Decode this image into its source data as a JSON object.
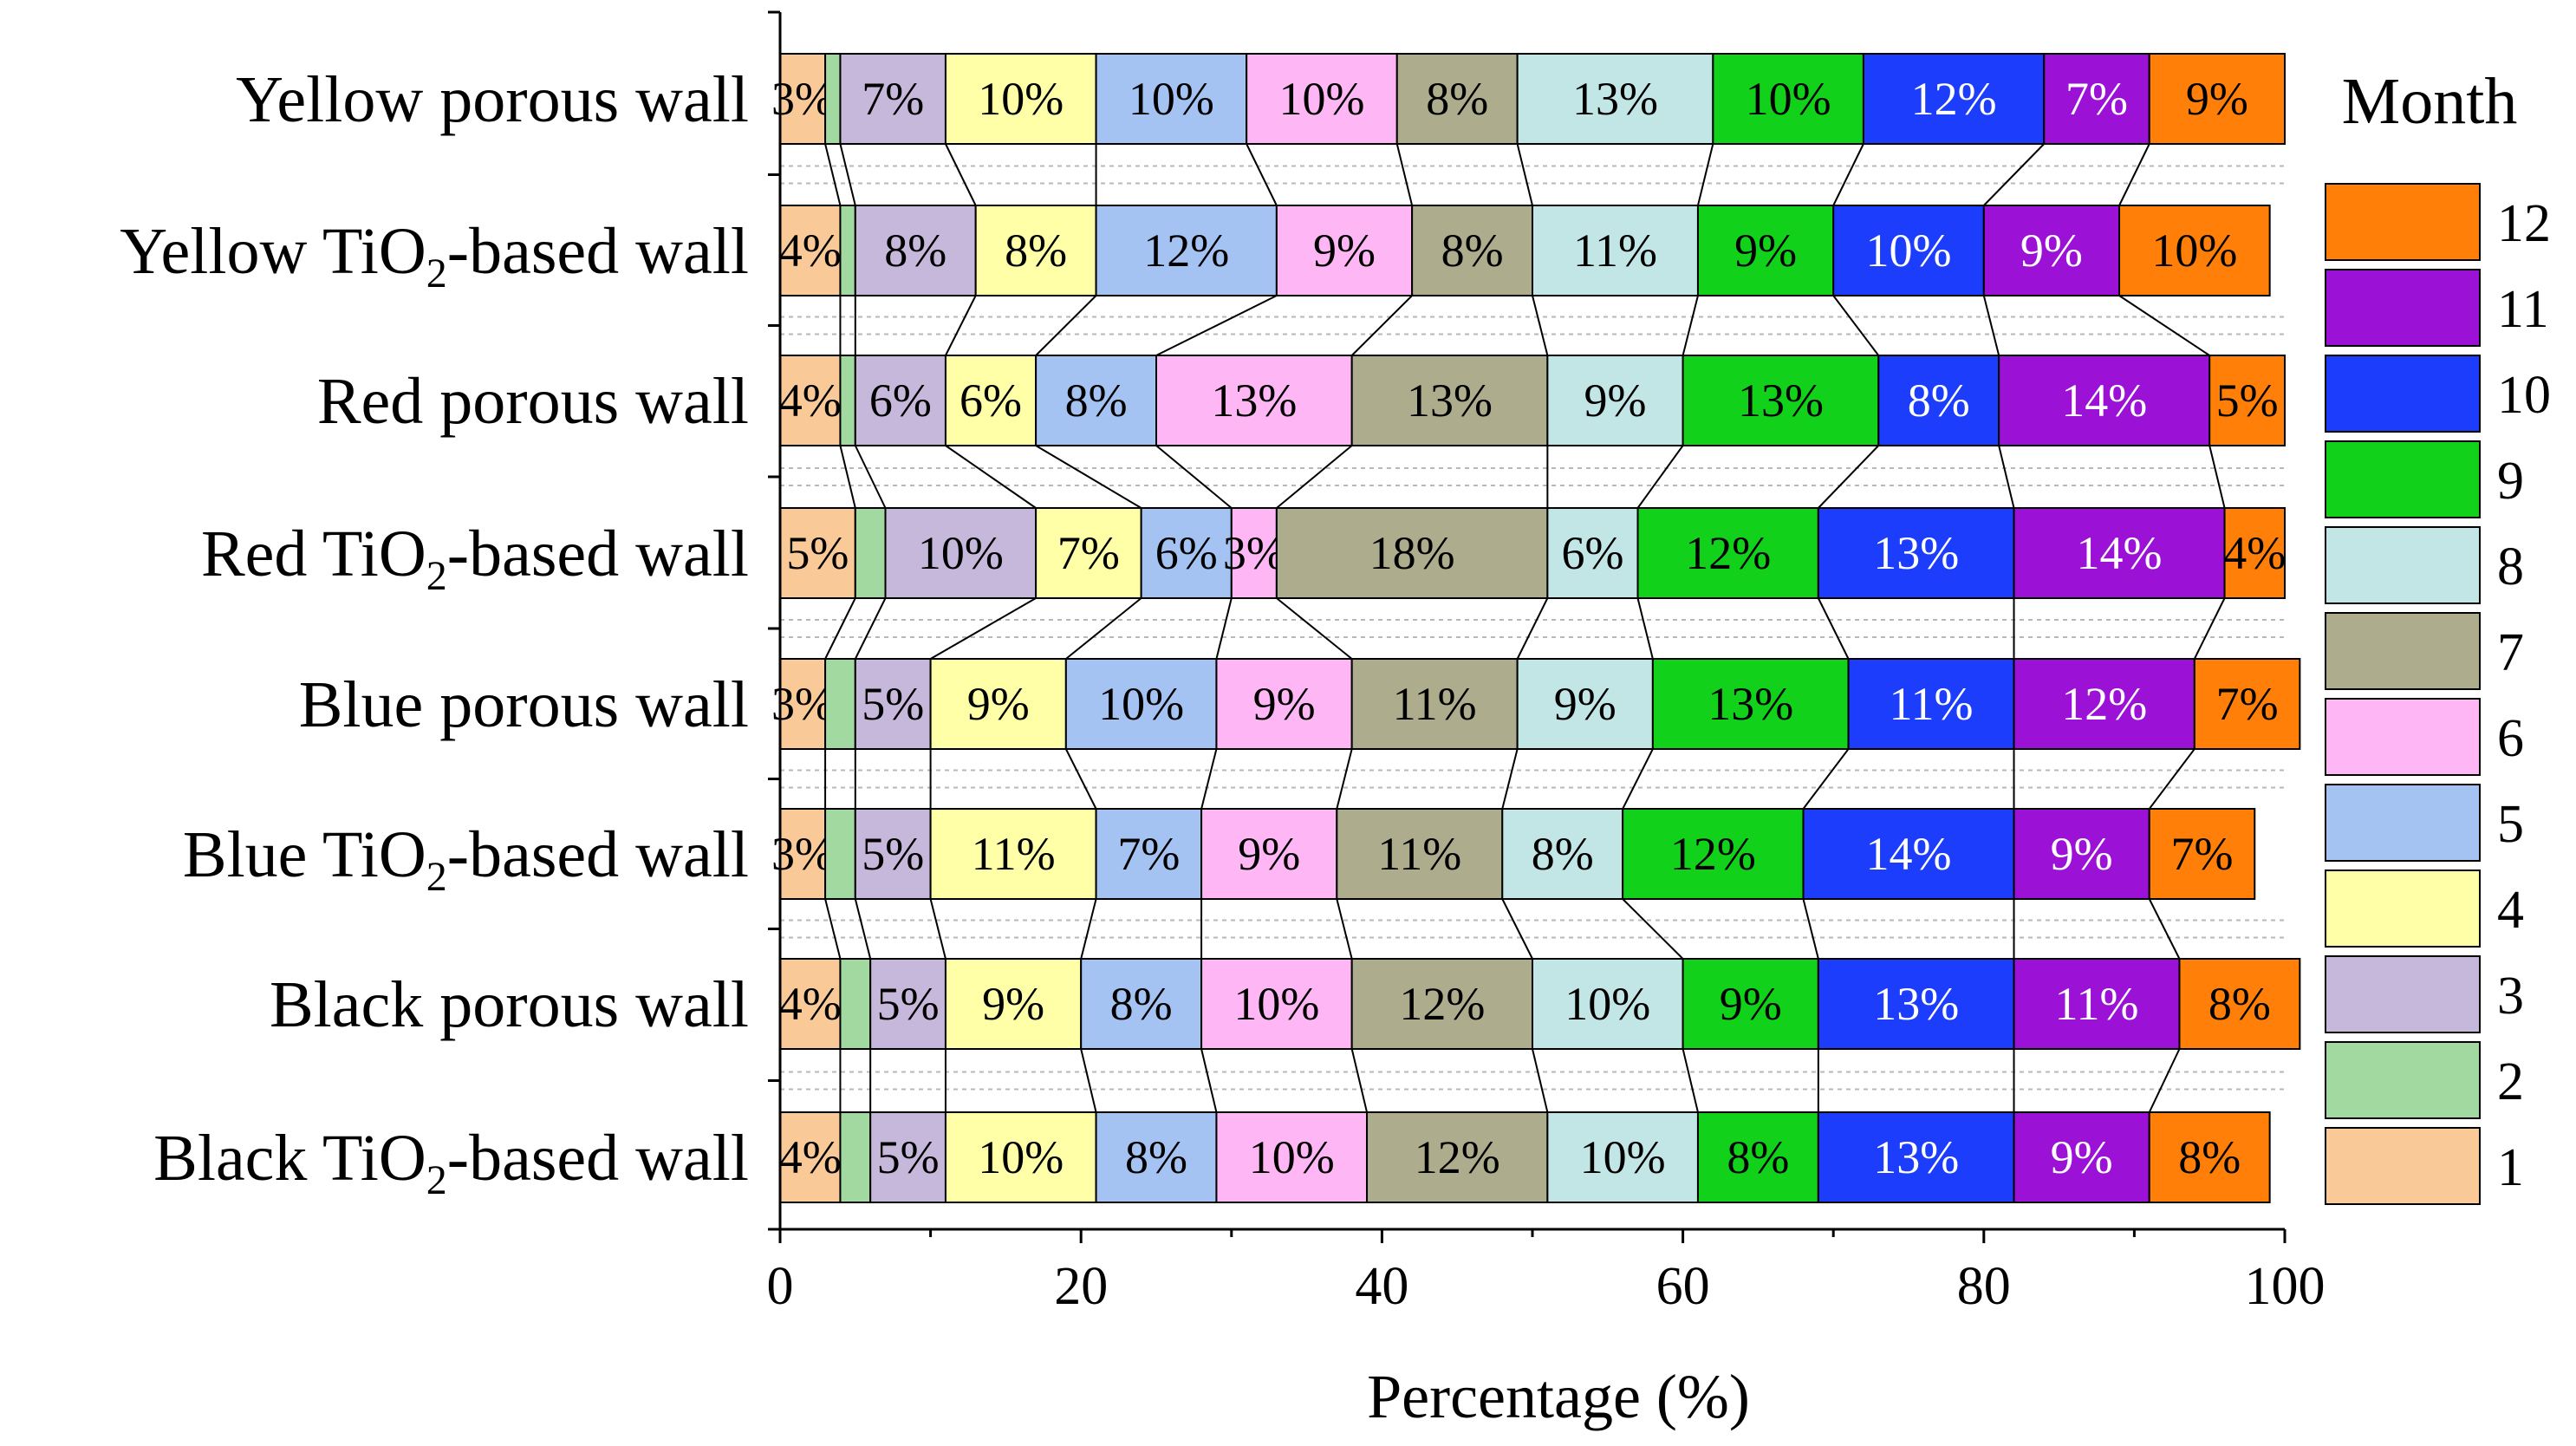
{
  "chart_data": {
    "type": "bar",
    "orientation": "horizontal",
    "stacked": true,
    "percent": true,
    "xlabel": "Percentage (%)",
    "xlim": [
      0,
      100
    ],
    "xticks": [
      0,
      20,
      40,
      60,
      80,
      100
    ],
    "legend_title": "Month",
    "legend_placement": "right",
    "categories": [
      {
        "pre": "Yellow porous wall",
        "sub": "",
        "post": ""
      },
      {
        "pre": "Yellow TiO",
        "sub": "2",
        "post": "-based wall"
      },
      {
        "pre": "Red porous wall",
        "sub": "",
        "post": ""
      },
      {
        "pre": "Red TiO",
        "sub": "2",
        "post": "-based wall"
      },
      {
        "pre": "Blue porous wall",
        "sub": "",
        "post": ""
      },
      {
        "pre": "Blue TiO",
        "sub": "2",
        "post": "-based wall"
      },
      {
        "pre": "Black porous wall",
        "sub": "",
        "post": ""
      },
      {
        "pre": "Black TiO",
        "sub": "2",
        "post": "-based wall"
      }
    ],
    "series": [
      {
        "name": "1",
        "color": "#f9c997",
        "text_color": "#000000",
        "values": [
          3,
          4,
          4,
          5,
          3,
          3,
          4,
          4
        ],
        "labels": [
          "3%",
          "4%",
          "4%",
          "5%",
          "3%",
          "3%",
          "4%",
          "4%"
        ]
      },
      {
        "name": "2",
        "color": "#a2d9a0",
        "text_color": "#000000",
        "values": [
          1,
          1,
          1,
          2,
          2,
          2,
          2,
          2
        ],
        "labels": [
          "",
          "",
          "",
          "",
          "",
          "",
          "",
          ""
        ]
      },
      {
        "name": "3",
        "color": "#c6b8da",
        "text_color": "#000000",
        "values": [
          7,
          8,
          6,
          10,
          5,
          5,
          5,
          5
        ],
        "labels": [
          "7%",
          "8%",
          "6%",
          "10%",
          "5%",
          "5%",
          "5%",
          "5%"
        ]
      },
      {
        "name": "4",
        "color": "#ffffa8",
        "text_color": "#000000",
        "values": [
          10,
          8,
          6,
          7,
          9,
          11,
          9,
          10
        ],
        "labels": [
          "10%",
          "8%",
          "6%",
          "7%",
          "9%",
          "11%",
          "9%",
          "10%"
        ]
      },
      {
        "name": "5",
        "color": "#a5c3f2",
        "text_color": "#000000",
        "values": [
          10,
          12,
          8,
          6,
          10,
          7,
          8,
          8
        ],
        "labels": [
          "10%",
          "12%",
          "8%",
          "6%",
          "10%",
          "7%",
          "8%",
          "8%"
        ]
      },
      {
        "name": "6",
        "color": "#ffb6f5",
        "text_color": "#000000",
        "values": [
          10,
          9,
          13,
          3,
          9,
          9,
          10,
          10
        ],
        "labels": [
          "10%",
          "9%",
          "13%",
          "3%",
          "9%",
          "9%",
          "10%",
          "10%"
        ]
      },
      {
        "name": "7",
        "color": "#adac8d",
        "text_color": "#000000",
        "values": [
          8,
          8,
          13,
          18,
          11,
          11,
          12,
          12
        ],
        "labels": [
          "8%",
          "8%",
          "13%",
          "18%",
          "11%",
          "11%",
          "12%",
          "12%"
        ]
      },
      {
        "name": "8",
        "color": "#c2e6e6",
        "text_color": "#000000",
        "values": [
          13,
          11,
          9,
          6,
          9,
          8,
          10,
          10
        ],
        "labels": [
          "13%",
          "11%",
          "9%",
          "6%",
          "9%",
          "8%",
          "10%",
          "10%"
        ]
      },
      {
        "name": "9",
        "color": "#11d11b",
        "text_color": "#000000",
        "values": [
          10,
          9,
          13,
          12,
          13,
          12,
          9,
          8
        ],
        "labels": [
          "10%",
          "9%",
          "13%",
          "12%",
          "13%",
          "12%",
          "9%",
          "8%"
        ]
      },
      {
        "name": "10",
        "color": "#1c3dfb",
        "text_color": "#ffffff",
        "values": [
          12,
          10,
          8,
          13,
          11,
          14,
          13,
          13
        ],
        "labels": [
          "12%",
          "10%",
          "8%",
          "13%",
          "11%",
          "14%",
          "13%",
          "13%"
        ]
      },
      {
        "name": "11",
        "color": "#9b11d6",
        "text_color": "#ffffff",
        "values": [
          7,
          9,
          14,
          14,
          12,
          9,
          11,
          9
        ],
        "labels": [
          "7%",
          "9%",
          "14%",
          "14%",
          "12%",
          "9%",
          "11%",
          "9%"
        ]
      },
      {
        "name": "12",
        "color": "#ff7f09",
        "text_color": "#000000",
        "values": [
          9,
          10,
          5,
          4,
          7,
          7,
          8,
          8
        ],
        "labels": [
          "9%",
          "10%",
          "5%",
          "4%",
          "7%",
          "7%",
          "8%",
          "8%"
        ]
      }
    ]
  }
}
